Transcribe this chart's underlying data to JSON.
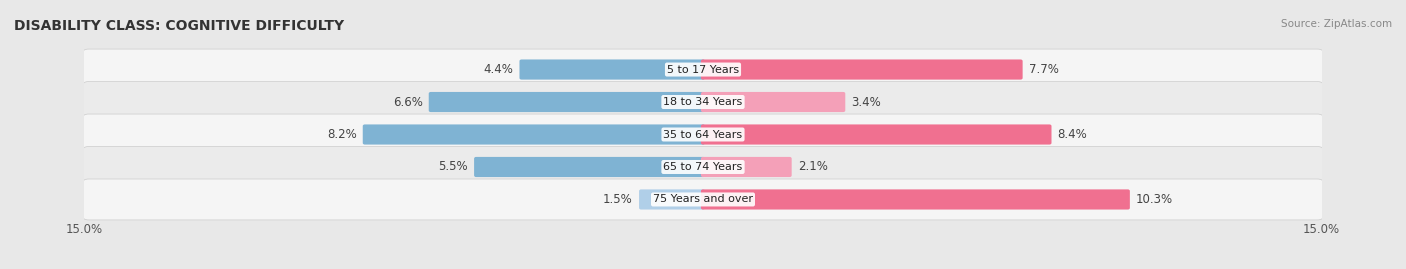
{
  "title": "DISABILITY CLASS: COGNITIVE DIFFICULTY",
  "source": "Source: ZipAtlas.com",
  "categories": [
    "5 to 17 Years",
    "18 to 34 Years",
    "35 to 64 Years",
    "65 to 74 Years",
    "75 Years and over"
  ],
  "male_values": [
    4.4,
    6.6,
    8.2,
    5.5,
    1.5
  ],
  "female_values": [
    7.7,
    3.4,
    8.4,
    2.1,
    10.3
  ],
  "male_colors": [
    "#7fb3d3",
    "#7fb3d3",
    "#7fb3d3",
    "#7fb3d3",
    "#b0cfe8"
  ],
  "female_colors": [
    "#f07090",
    "#f4a0b8",
    "#f07090",
    "#f4a0b8",
    "#f07090"
  ],
  "max_val": 15.0,
  "bar_height": 0.52,
  "background_color": "#e8e8e8",
  "row_bg_color": "#f5f5f5",
  "row_alt_color": "#ebebeb",
  "title_fontsize": 10,
  "label_fontsize": 8.5,
  "value_fontsize": 8.5,
  "tick_fontsize": 8.5,
  "source_fontsize": 7.5
}
